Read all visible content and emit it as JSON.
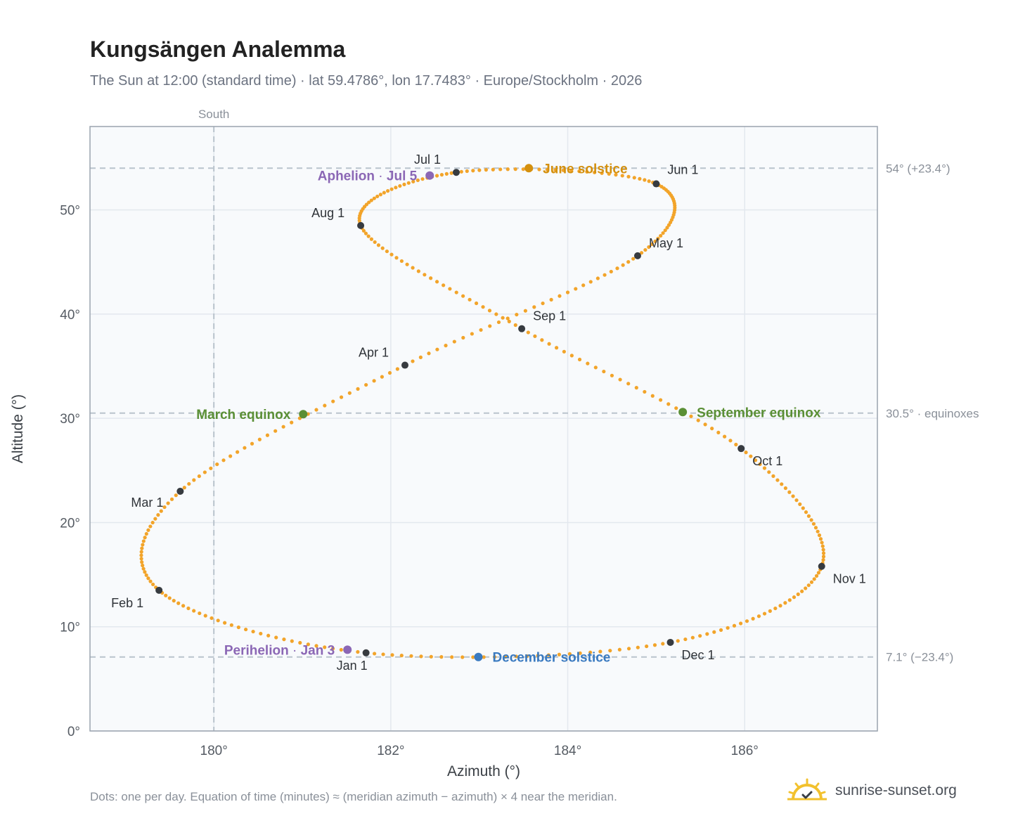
{
  "header": {
    "title": "Kungsängen Analemma",
    "subtitle": "The Sun at 12:00 (standard time) · lat 59.4786°, lon 17.7483° · Europe/Stockholm · 2026"
  },
  "footer": {
    "note": "Dots: one per day. Equation of time (minutes) ≈ (meridian azimuth − azimuth) × 4 near the meridian.",
    "brand": "sunrise-sunset.org"
  },
  "colors": {
    "curve": "#f2a42a",
    "month_marker": "#373b40",
    "june_solstice": "#d4900e",
    "december_solstice": "#3a7ac0",
    "equinox": "#5a8f35",
    "apsis": "#8b67b5",
    "reference_line": "#b9c3cc",
    "plot_background": "#f8fafc"
  },
  "chart_data": {
    "type": "scatter",
    "title": "Kungsängen Analemma",
    "xlabel": "Azimuth (°)",
    "ylabel": "Altitude (°)",
    "xlim": [
      178.6,
      187.5
    ],
    "ylim": [
      0,
      58
    ],
    "xticks": [
      180,
      182,
      184,
      186
    ],
    "xtick_labels": [
      "180°",
      "182°",
      "184°",
      "186°"
    ],
    "yticks": [
      0,
      10,
      20,
      30,
      40,
      50
    ],
    "ytick_labels": [
      "0°",
      "10°",
      "20°",
      "30°",
      "40°",
      "50°"
    ],
    "grid": true,
    "south_line": {
      "x": 180,
      "label": "South"
    },
    "reference_lines": [
      {
        "y": 54.0,
        "label": "54° (+23.4°)"
      },
      {
        "y": 30.5,
        "label": "30.5° · equinoxes"
      },
      {
        "y": 7.1,
        "label": "7.1° (−23.4°)"
      }
    ],
    "month_markers": [
      {
        "label": "Jan 1",
        "x": 181.72,
        "y": 7.5
      },
      {
        "label": "Feb 1",
        "x": 179.38,
        "y": 13.5
      },
      {
        "label": "Mar 1",
        "x": 179.62,
        "y": 23.0
      },
      {
        "label": "Apr 1",
        "x": 182.16,
        "y": 35.1
      },
      {
        "label": "May 1",
        "x": 184.79,
        "y": 45.6
      },
      {
        "label": "Jun 1",
        "x": 185.0,
        "y": 52.5
      },
      {
        "label": "Jul 1",
        "x": 182.74,
        "y": 53.6
      },
      {
        "label": "Aug 1",
        "x": 181.66,
        "y": 48.5
      },
      {
        "label": "Sep 1",
        "x": 183.48,
        "y": 38.6
      },
      {
        "label": "Oct 1",
        "x": 185.96,
        "y": 27.1
      },
      {
        "label": "Nov 1",
        "x": 186.87,
        "y": 15.8
      },
      {
        "label": "Dec 1",
        "x": 185.16,
        "y": 8.5
      }
    ],
    "events": [
      {
        "name": "June solstice",
        "x": 183.56,
        "y": 54.0,
        "color": "#d4900e"
      },
      {
        "name": "December solstice",
        "x": 182.99,
        "y": 7.1,
        "color": "#3a7ac0"
      },
      {
        "name": "March equinox",
        "x": 181.01,
        "y": 30.4,
        "color": "#5a8f35"
      },
      {
        "name": "September equinox",
        "x": 185.3,
        "y": 30.6,
        "color": "#5a8f35"
      },
      {
        "name": "Aphelion",
        "date": "Jul 5",
        "x": 182.44,
        "y": 53.3,
        "color": "#8b67b5"
      },
      {
        "name": "Perihelion",
        "date": "Jan 3",
        "x": 181.51,
        "y": 7.8,
        "color": "#8b67b5"
      }
    ]
  }
}
